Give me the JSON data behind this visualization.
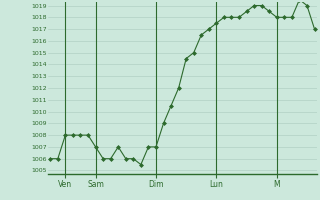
{
  "x_values": [
    0,
    1,
    2,
    3,
    4,
    5,
    6,
    7,
    8,
    9,
    10,
    11,
    12,
    13,
    14,
    15,
    16,
    17,
    18,
    19,
    20,
    21,
    22,
    23,
    24,
    25,
    26,
    27,
    28,
    29,
    30,
    31,
    32,
    33,
    34,
    35
  ],
  "y_values": [
    1006,
    1006,
    1008,
    1008,
    1008,
    1008,
    1007,
    1006,
    1006,
    1007,
    1006,
    1006,
    1005.5,
    1007,
    1007,
    1009,
    1010.5,
    1012,
    1014.5,
    1015,
    1016.5,
    1017,
    1017.5,
    1018,
    1018,
    1018,
    1018.5,
    1019,
    1019,
    1018.5,
    1018,
    1018,
    1018,
    1019.5,
    1019,
    1017
  ],
  "xtick_positions": [
    2,
    6,
    14,
    22,
    30
  ],
  "xtick_labels": [
    "Ven",
    "Sam",
    "Dim",
    "Lun",
    "M"
  ],
  "ytick_min": 1005,
  "ytick_max": 1019,
  "ytick_step": 1,
  "line_color": "#2d6a2d",
  "marker_color": "#2d6a2d",
  "bg_color": "#cce8dc",
  "grid_color": "#aacbbf",
  "axis_color": "#2d6a2d",
  "vline_positions": [
    2,
    6,
    14,
    22,
    30
  ],
  "figsize": [
    3.2,
    2.0
  ],
  "dpi": 100
}
